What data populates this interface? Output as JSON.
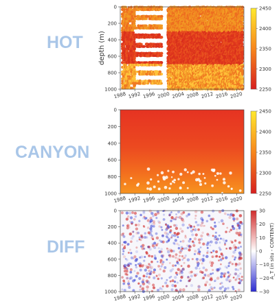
{
  "labels": {
    "hot": "HOT",
    "canyon": "CANYON",
    "diff": "DIFF"
  },
  "chart_data": [
    {
      "name": "HOT",
      "type": "heatmap",
      "ylabel": "depth (m)",
      "xticks": [
        "1988",
        "1992",
        "1996",
        "2000",
        "2004",
        "2008",
        "2012",
        "2016",
        "2020"
      ],
      "yticks": [
        "0",
        "200",
        "400",
        "600",
        "800",
        "1000"
      ],
      "xlim": [
        1988,
        2022
      ],
      "ylim": [
        1000,
        0
      ],
      "colorbar": {
        "ticks": [
          "2250",
          "2300",
          "2350",
          "2400",
          "2450"
        ],
        "range": [
          2250,
          2450
        ],
        "colors": [
          "#d71f1f",
          "#f7861c",
          "#ffe92e"
        ]
      },
      "sampling": {
        "years_sparse": [
          1989,
          2000
        ],
        "gap_years": [
          2001,
          2002
        ],
        "depth_max": 1000
      }
    },
    {
      "name": "CANYON",
      "type": "heatmap",
      "ylabel": "",
      "xticks": [
        "1988",
        "1992",
        "1996",
        "2000",
        "2004",
        "2008",
        "2012",
        "2016",
        "2020"
      ],
      "yticks": [
        "0",
        "200",
        "400",
        "600",
        "800",
        "1000"
      ],
      "xlim": [
        1988,
        2022
      ],
      "ylim": [
        1000,
        0
      ],
      "colorbar": {
        "ticks": [
          "2250",
          "2300",
          "2350",
          "2400",
          "2450"
        ],
        "range": [
          2250,
          2450
        ],
        "colors": [
          "#d71f1f",
          "#f7861c",
          "#ffe92e"
        ]
      }
    },
    {
      "name": "DIFF",
      "type": "heatmap",
      "ylabel": "",
      "xticks": [
        "1988",
        "1992",
        "1996",
        "2000",
        "2004",
        "2008",
        "2012",
        "2016",
        "2020"
      ],
      "yticks": [
        "0",
        "200",
        "400",
        "600",
        "800",
        "1000"
      ],
      "xlim": [
        1988,
        2022
      ],
      "ylim": [
        1000,
        0
      ],
      "colorbar": {
        "label": "A_T (in situ - CONTENT)",
        "ticks": [
          "30",
          "20",
          "10",
          "0",
          "−10",
          "−20",
          "−30"
        ],
        "range": [
          -30,
          30
        ],
        "colors": [
          "#2b2bd1",
          "#ffffff",
          "#d12b2b"
        ]
      }
    }
  ]
}
